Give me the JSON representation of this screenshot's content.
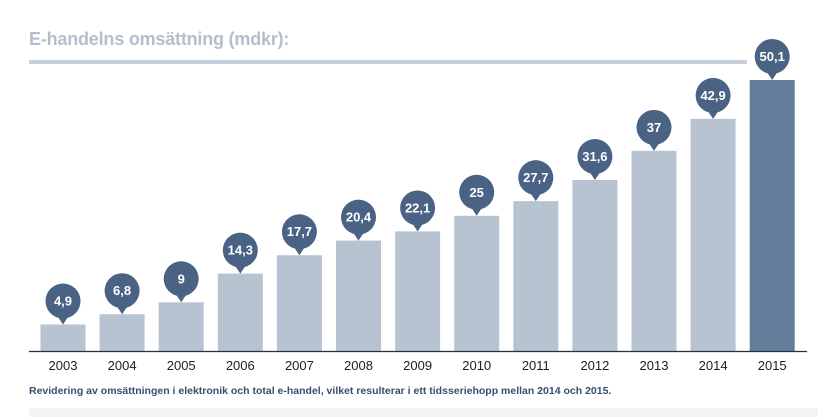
{
  "chart_data": {
    "type": "bar",
    "title": "E-handelns omsättning (mdkr):",
    "xlabel": "",
    "ylabel": "",
    "ylim": [
      0,
      55
    ],
    "grid": false,
    "categories": [
      "2003",
      "2004",
      "2005",
      "2006",
      "2007",
      "2008",
      "2009",
      "2010",
      "2011",
      "2012",
      "2013",
      "2014",
      "2015"
    ],
    "values": [
      4.9,
      6.8,
      9,
      14.3,
      17.7,
      20.4,
      22.1,
      25,
      27.7,
      31.6,
      37,
      42.9,
      50.1
    ],
    "data_labels": [
      "4,9",
      "6,8",
      "9",
      "14,3",
      "17,7",
      "20,4",
      "22,1",
      "25",
      "27,7",
      "31,6",
      "37",
      "42,9",
      "50,1"
    ],
    "highlight_category": "2015",
    "footnote": "Revidering av omsättningen i elektronik och total e-handel, vilket resulterar i ett tidsseriehopp mellan 2014 och 2015."
  },
  "colors": {
    "bar": "#b8c3d2",
    "bar_highlight": "#637d9b",
    "label_bubble": "#4a6385",
    "label_text": "#ffffff",
    "axis_line": "#253246",
    "tick_text": "#1a1f26",
    "title": "#b4bfcd",
    "title_rule": "#c7cfda",
    "footnote": "#34506f"
  }
}
